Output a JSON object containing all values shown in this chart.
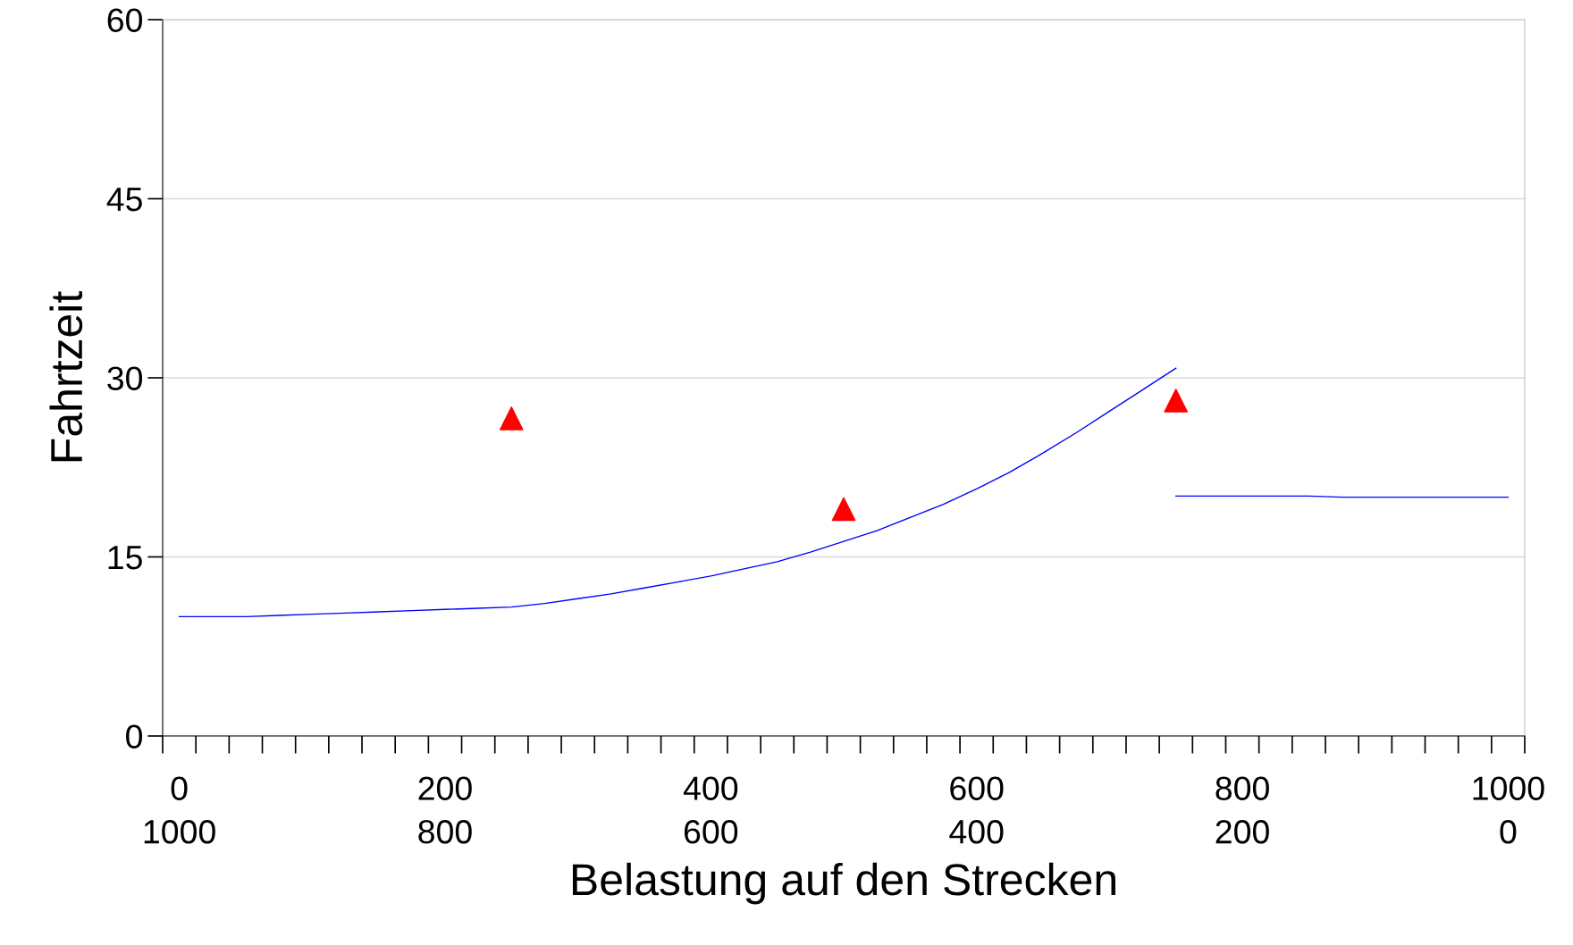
{
  "chart_data": {
    "type": "line",
    "xlabel": "Belastung auf den Strecken",
    "ylabel": "Fahrtzeit",
    "categories": [
      "0\n1000",
      null,
      null,
      null,
      null,
      null,
      null,
      null,
      "200\n800",
      null,
      null,
      null,
      null,
      null,
      null,
      null,
      "400\n600",
      null,
      null,
      null,
      null,
      null,
      null,
      null,
      "600\n400",
      null,
      null,
      null,
      null,
      null,
      null,
      null,
      "800\n200",
      null,
      null,
      null,
      null,
      null,
      null,
      null,
      "1000\n0"
    ],
    "ylim": [
      0,
      60
    ],
    "yticks": [
      0,
      15,
      30,
      45,
      60
    ],
    "grid": "y",
    "series": [
      {
        "color": "#0000ff",
        "values": [
          10.0,
          10.0,
          10.0,
          10.1,
          10.2,
          10.3,
          10.4,
          10.5,
          10.6,
          10.7,
          10.8,
          11.1,
          11.5,
          11.9,
          12.4,
          12.9,
          13.4,
          14.0,
          14.6,
          15.4,
          16.3,
          17.2,
          18.3,
          19.4,
          20.7,
          22.1,
          23.7,
          25.4,
          27.2,
          29.0,
          30.8,
          null,
          null,
          null,
          null,
          null,
          null,
          null,
          null,
          null,
          null
        ]
      },
      {
        "color": "#0000ff",
        "values": [
          null,
          null,
          null,
          null,
          null,
          null,
          null,
          null,
          null,
          null,
          null,
          null,
          null,
          null,
          null,
          null,
          null,
          null,
          null,
          null,
          null,
          null,
          null,
          null,
          null,
          null,
          null,
          null,
          null,
          null,
          20.1,
          20.1,
          20.1,
          20.1,
          20.1,
          20.0,
          20.0,
          20.0,
          20.0,
          20.0,
          20.0
        ]
      },
      {
        "type": "scatter",
        "color": "#ff0000",
        "marker": "triangle",
        "values": [
          null,
          null,
          null,
          null,
          null,
          null,
          null,
          null,
          null,
          null,
          26.6,
          null,
          null,
          null,
          null,
          null,
          null,
          null,
          null,
          null,
          19.0,
          null,
          null,
          null,
          null,
          null,
          null,
          null,
          null,
          null,
          28.1,
          null,
          null,
          null,
          null,
          null,
          null,
          null,
          null,
          null,
          null
        ]
      }
    ]
  }
}
